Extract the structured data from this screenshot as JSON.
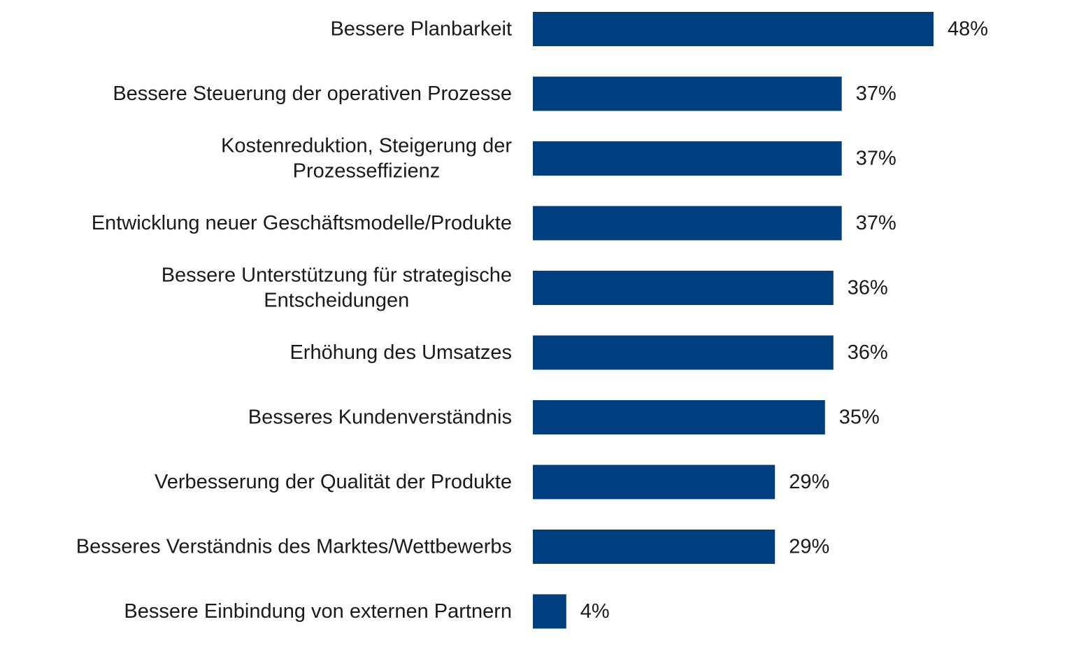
{
  "chart_data": {
    "type": "bar",
    "orientation": "horizontal",
    "categories": [
      "Bessere Planbarkeit",
      "Bessere Steuerung der operativen Prozesse",
      "Kostenreduktion, Steigerung der Prozesseffizienz",
      "Entwicklung neuer Geschäftsmodelle/Produkte",
      "Bessere Unterstützung für strategische Entscheidungen",
      "Erhöhung des Umsatzes",
      "Besseres Kundenverständnis",
      "Verbesserung der Qualität der Produkte",
      "Besseres Verständnis des Marktes/Wettbewerbs",
      "Bessere Einbindung von externen Partnern"
    ],
    "category_lines": [
      [
        "Bessere Planbarkeit"
      ],
      [
        "Bessere Steuerung der operativen Prozesse"
      ],
      [
        "Kostenreduktion, Steigerung der",
        "Prozesseffizienz"
      ],
      [
        "Entwicklung neuer Geschäftsmodelle/Produkte"
      ],
      [
        "Bessere Unterstützung für strategische",
        "Entscheidungen"
      ],
      [
        "Erhöhung des Umsatzes"
      ],
      [
        "Besseres Kundenverständnis"
      ],
      [
        "Verbesserung der Qualität der Produkte"
      ],
      [
        "Besseres Verständnis des Marktes/Wettbewerbs"
      ],
      [
        "Bessere Einbindung von externen Partnern"
      ]
    ],
    "values": [
      48,
      37,
      37,
      37,
      36,
      36,
      35,
      29,
      29,
      4
    ],
    "value_labels": [
      "48%",
      "37%",
      "37%",
      "37%",
      "36%",
      "36%",
      "35%",
      "29%",
      "29%",
      "4%"
    ],
    "unit": "%",
    "xlim": [
      0,
      48
    ],
    "grid": false,
    "legend": "none",
    "bar_color": "#003f7f",
    "text_color": "#1a1a1a"
  }
}
